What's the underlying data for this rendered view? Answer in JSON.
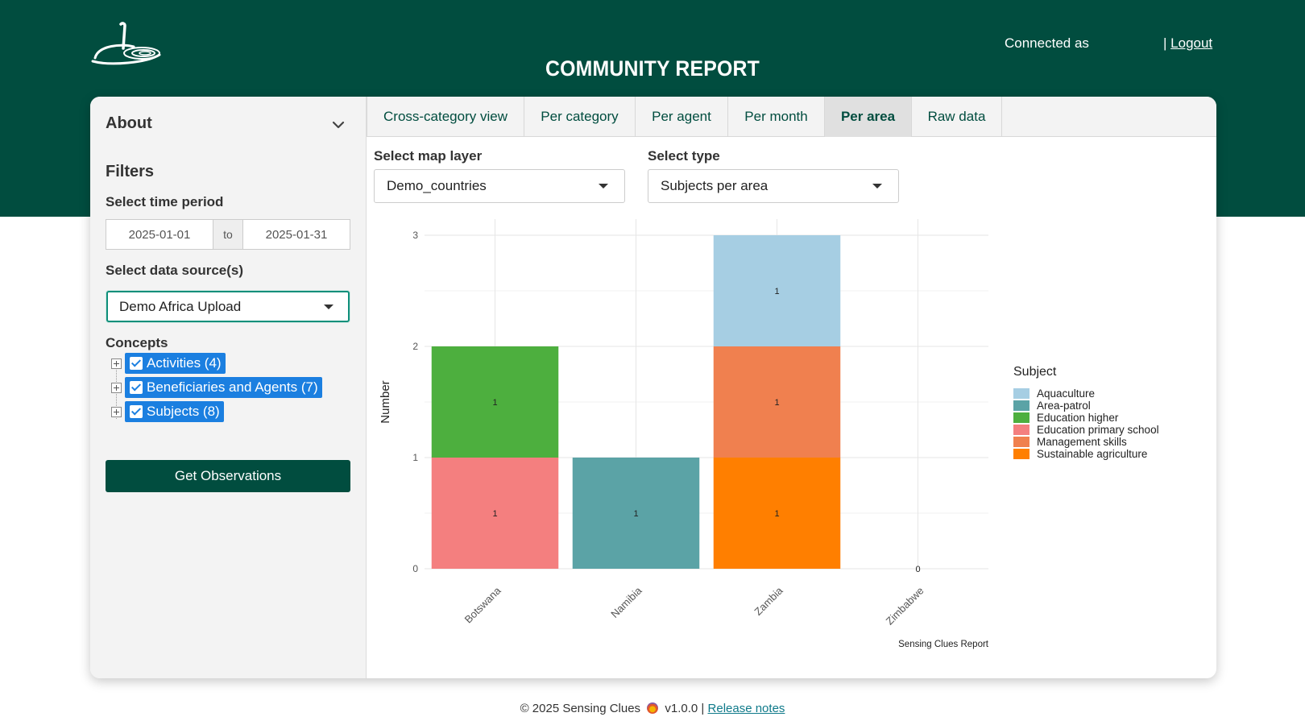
{
  "header": {
    "title": "COMMUNITY REPORT",
    "connected_as": "Connected as",
    "logout_prefix": "|",
    "logout": "Logout"
  },
  "sidebar": {
    "about": "About",
    "filters": "Filters",
    "time_period_label": "Select time period",
    "date_start": "2025-01-01",
    "date_sep": "to",
    "date_end": "2025-01-31",
    "data_source_label": "Select data source(s)",
    "data_source_value": "Demo Africa Upload",
    "concepts_label": "Concepts",
    "concepts": [
      {
        "label": "Activities (4)",
        "checked": true
      },
      {
        "label": "Beneficiaries and Agents (7)",
        "checked": true
      },
      {
        "label": "Subjects (8)",
        "checked": true
      }
    ],
    "get_observations": "Get Observations"
  },
  "tabs": [
    {
      "label": "Cross-category view",
      "active": false
    },
    {
      "label": "Per category",
      "active": false
    },
    {
      "label": "Per agent",
      "active": false
    },
    {
      "label": "Per month",
      "active": false
    },
    {
      "label": "Per area",
      "active": true
    },
    {
      "label": "Raw data",
      "active": false
    }
  ],
  "controls": {
    "map_layer_label": "Select map layer",
    "map_layer_value": "Demo_countries",
    "type_label": "Select type",
    "type_value": "Subjects per area"
  },
  "chart_data": {
    "type": "bar",
    "stacked": true,
    "categories": [
      "Botswana",
      "Namibia",
      "Zambia",
      "Zimbabwe"
    ],
    "ylabel": "Number",
    "xlabel": "",
    "ylim": [
      0,
      3
    ],
    "yticks": [
      0,
      1,
      2,
      3
    ],
    "grid": true,
    "legend_title": "Subject",
    "legend_position": "right",
    "caption": "Sensing Clues Report",
    "zero_label": "0",
    "series": [
      {
        "name": "Aquaculture",
        "color": "#a6cee3",
        "values": [
          0,
          0,
          1,
          0
        ]
      },
      {
        "name": "Area-patrol",
        "color": "#5ba3a6",
        "values": [
          0,
          1,
          0,
          0
        ]
      },
      {
        "name": "Education higher",
        "color": "#4daf3e",
        "values": [
          1,
          0,
          0,
          0
        ]
      },
      {
        "name": "Education primary school",
        "color": "#f47f7f",
        "values": [
          1,
          0,
          0,
          0
        ]
      },
      {
        "name": "Management skills",
        "color": "#f0804f",
        "values": [
          0,
          0,
          1,
          0
        ]
      },
      {
        "name": "Sustainable agriculture",
        "color": "#ff7f00",
        "values": [
          0,
          0,
          1,
          0
        ]
      }
    ],
    "stack_order": [
      "Sustainable agriculture",
      "Education primary school",
      "Area-patrol",
      "Management skills",
      "Education higher",
      "Aquaculture"
    ]
  },
  "footer": {
    "copyright": "© 2025 Sensing Clues",
    "version": "v1.0.0 |",
    "release_notes": "Release notes"
  }
}
